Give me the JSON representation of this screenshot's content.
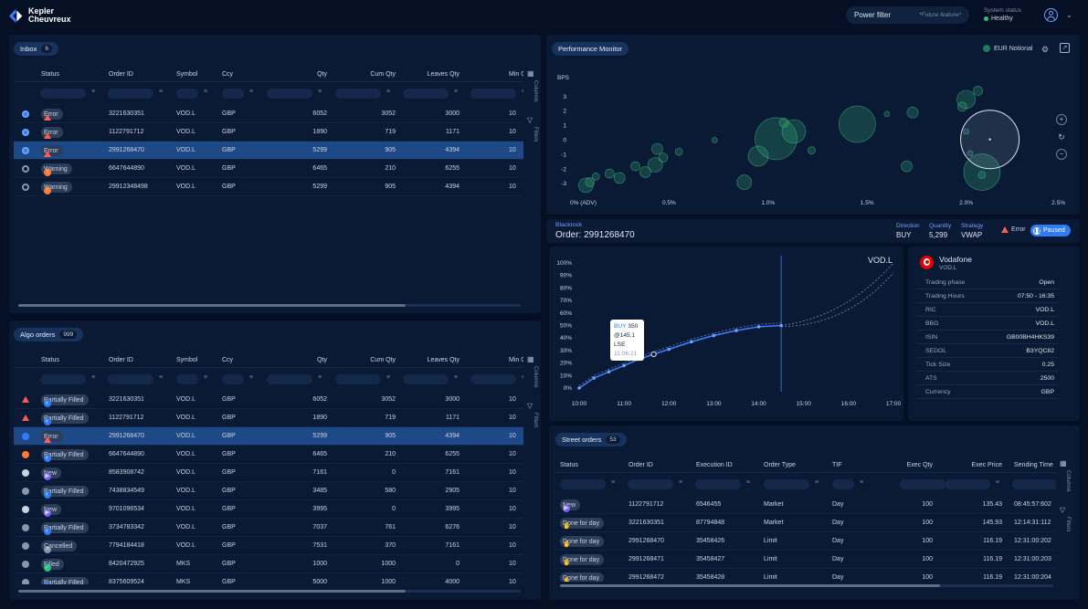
{
  "brand": {
    "line1": "Kepler",
    "line2": "Cheuvreux"
  },
  "top": {
    "power_filter": "Power filter",
    "future": "*Future feature*",
    "sys_title": "System status",
    "sys_value": "Healthy"
  },
  "inbox": {
    "title": "Inbox",
    "count": "6",
    "columns": [
      "Status",
      "Order ID",
      "Symbol",
      "Ccy",
      "Qty",
      "Cum Qty",
      "Leaves Qty",
      "Min Q"
    ],
    "rows": [
      {
        "status": "Error",
        "id": "3221630351",
        "sym": "VOD.L",
        "ccy": "GBP",
        "qty": "6052",
        "cum": "3052",
        "leaves": "3000",
        "min": "10"
      },
      {
        "status": "Error",
        "id": "1122791712",
        "sym": "VOD.L",
        "ccy": "GBP",
        "qty": "1890",
        "cum": "719",
        "leaves": "1171",
        "min": "10"
      },
      {
        "status": "Error",
        "id": "2991268470",
        "sym": "VOD.L",
        "ccy": "GBP",
        "qty": "5299",
        "cum": "905",
        "leaves": "4394",
        "min": "10"
      },
      {
        "status": "Warning",
        "id": "6647644890",
        "sym": "VOD.L",
        "ccy": "GBP",
        "qty": "6465",
        "cum": "210",
        "leaves": "6255",
        "min": "10"
      },
      {
        "status": "Warning",
        "id": "29912348498",
        "sym": "VOD.L",
        "ccy": "GBP",
        "qty": "5299",
        "cum": "905",
        "leaves": "4394",
        "min": "10"
      }
    ]
  },
  "algo": {
    "title": "Algo orders",
    "count": "999",
    "columns": [
      "Status",
      "Order ID",
      "Symbol",
      "Ccy",
      "Qty",
      "Cum Qty",
      "Leaves Qty",
      "Min Q"
    ],
    "rows": [
      {
        "status": "Partially Filled",
        "id": "3221630351",
        "sym": "VOD.L",
        "ccy": "GBP",
        "qty": "6052",
        "cum": "3052",
        "leaves": "3000",
        "min": "10"
      },
      {
        "status": "Partially Filled",
        "id": "1122791712",
        "sym": "VOD.L",
        "ccy": "GBP",
        "qty": "1890",
        "cum": "719",
        "leaves": "1171",
        "min": "10"
      },
      {
        "status": "Error",
        "id": "2991268470",
        "sym": "VOD.L",
        "ccy": "GBP",
        "qty": "5299",
        "cum": "905",
        "leaves": "4394",
        "min": "10"
      },
      {
        "status": "Partially Filled",
        "id": "6647644890",
        "sym": "VOD.L",
        "ccy": "GBP",
        "qty": "6465",
        "cum": "210",
        "leaves": "6255",
        "min": "10"
      },
      {
        "status": "New",
        "id": "8583908742",
        "sym": "VOD.L",
        "ccy": "GBP",
        "qty": "7161",
        "cum": "0",
        "leaves": "7161",
        "min": "10"
      },
      {
        "status": "Partially Filled",
        "id": "7438834549",
        "sym": "VOD.L",
        "ccy": "GBP",
        "qty": "3485",
        "cum": "580",
        "leaves": "2905",
        "min": "10"
      },
      {
        "status": "New",
        "id": "9701096534",
        "sym": "VOD.L",
        "ccy": "GBP",
        "qty": "3995",
        "cum": "0",
        "leaves": "3995",
        "min": "10"
      },
      {
        "status": "Partially Filled",
        "id": "3734783342",
        "sym": "VOD.L",
        "ccy": "GBP",
        "qty": "7037",
        "cum": "761",
        "leaves": "6276",
        "min": "10"
      },
      {
        "status": "Cancelled",
        "id": "7794184418",
        "sym": "VOD.L",
        "ccy": "GBP",
        "qty": "7531",
        "cum": "370",
        "leaves": "7161",
        "min": "10"
      },
      {
        "status": "Filled",
        "id": "8420472925",
        "sym": "MKS",
        "ccy": "GBP",
        "qty": "1000",
        "cum": "1000",
        "leaves": "0",
        "min": "10"
      },
      {
        "status": "Partially Filled",
        "id": "8375609524",
        "sym": "MKS",
        "ccy": "GBP",
        "qty": "5000",
        "cum": "1000",
        "leaves": "4000",
        "min": "10"
      }
    ]
  },
  "side_labels": {
    "columns": "Columns",
    "filters": "Filters"
  },
  "perf": {
    "title": "Performance Monitor",
    "notional": "EUR Notional",
    "chart_data": {
      "type": "scatter",
      "ylabel": "BPS",
      "x_ticks": [
        "0% (ADV)",
        "0.5%",
        "1.0%",
        "1.5%",
        "2.0%",
        "2.5%"
      ],
      "y_ticks": [
        "3",
        "2",
        "1",
        "0",
        "-1",
        "-2",
        "-3"
      ],
      "xlim": [
        0,
        2.5
      ],
      "ylim": [
        -3.3,
        3.3
      ],
      "points": [
        {
          "x": 0.08,
          "y": -3.1,
          "s": 8
        },
        {
          "x": 0.1,
          "y": -2.9,
          "s": 5
        },
        {
          "x": 0.13,
          "y": -2.5,
          "s": 4
        },
        {
          "x": 0.2,
          "y": -2.3,
          "s": 5
        },
        {
          "x": 0.25,
          "y": -2.6,
          "s": 6
        },
        {
          "x": 0.33,
          "y": -1.8,
          "s": 5
        },
        {
          "x": 0.38,
          "y": -2.2,
          "s": 6
        },
        {
          "x": 0.43,
          "y": -1.7,
          "s": 8
        },
        {
          "x": 0.44,
          "y": -0.6,
          "s": 6
        },
        {
          "x": 0.47,
          "y": -1.2,
          "s": 5
        },
        {
          "x": 0.55,
          "y": -0.8,
          "s": 4
        },
        {
          "x": 0.73,
          "y": 0.0,
          "s": 3
        },
        {
          "x": 0.88,
          "y": -2.9,
          "s": 8
        },
        {
          "x": 0.95,
          "y": -1.1,
          "s": 11
        },
        {
          "x": 1.04,
          "y": 0.1,
          "s": 23
        },
        {
          "x": 1.08,
          "y": 1.2,
          "s": 5
        },
        {
          "x": 1.13,
          "y": 0.6,
          "s": 13
        },
        {
          "x": 1.22,
          "y": -0.7,
          "s": 4
        },
        {
          "x": 1.45,
          "y": 1.1,
          "s": 20
        },
        {
          "x": 1.6,
          "y": 1.8,
          "s": 3
        },
        {
          "x": 1.73,
          "y": 1.9,
          "s": 6
        },
        {
          "x": 1.7,
          "y": -1.8,
          "s": 6
        },
        {
          "x": 1.98,
          "y": 2.3,
          "s": 5
        },
        {
          "x": 2.0,
          "y": 0.6,
          "s": 3
        },
        {
          "x": 2.0,
          "y": 2.8,
          "s": 10
        },
        {
          "x": 2.02,
          "y": -0.9,
          "s": 3
        },
        {
          "x": 2.06,
          "y": 3.4,
          "s": 5
        },
        {
          "x": 2.08,
          "y": -2.2,
          "s": 20
        },
        {
          "x": 2.08,
          "y": -2.4,
          "s": 4
        },
        {
          "x": 2.12,
          "y": 0.05,
          "s": 32,
          "hl": true
        }
      ]
    }
  },
  "order": {
    "client": "Blackrock",
    "title": "Order: 2991268470",
    "direction_label": "Direction",
    "direction": "BUY",
    "quantity_label": "Quantity",
    "quantity": "5,299",
    "strategy_label": "Strategy",
    "strategy": "VWAP",
    "error": "Error",
    "paused": "Paused"
  },
  "exec_chart": {
    "chart_data": {
      "type": "line",
      "symbol": "VOD.L",
      "y_ticks": [
        "100%",
        "90%",
        "80%",
        "70%",
        "60%",
        "50%",
        "40%",
        "30%",
        "20%",
        "10%",
        "0%"
      ],
      "x_ticks": [
        "10:00",
        "11:00",
        "12:00",
        "13:00",
        "14:00",
        "15:00",
        "16:00",
        "17:00"
      ],
      "x": [
        10.0,
        10.33,
        10.66,
        11.0,
        11.33,
        11.66,
        12.0,
        12.5,
        13.0,
        13.5,
        14.0,
        14.5
      ],
      "y": [
        0,
        8,
        13,
        18,
        23,
        27,
        31,
        37,
        42,
        46,
        49,
        50
      ],
      "now": 14.5,
      "tooltip": {
        "side": "BUY",
        "qty": "350",
        "price": "@145.1",
        "venue": "LSE",
        "time": "11:06:21"
      }
    }
  },
  "instrument": {
    "name": "Vodafone",
    "ticker": "VOD.L",
    "rows": [
      {
        "k": "Trading phase",
        "v": "Open"
      },
      {
        "k": "Trading Hours",
        "v": "07:50 - 16:35"
      },
      {
        "k": "RIC",
        "v": "VOD.L"
      },
      {
        "k": "BBG",
        "v": "VOD.L"
      },
      {
        "k": "ISIN",
        "v": "GB00BH4HKS39"
      },
      {
        "k": "SEDOL",
        "v": "B3YQC82"
      },
      {
        "k": "Tick Size",
        "v": "0.25"
      },
      {
        "k": "ATS",
        "v": "2500"
      },
      {
        "k": "Currency",
        "v": "GBP"
      }
    ]
  },
  "street": {
    "title": "Street orders",
    "count": "53",
    "columns": [
      "Status",
      "Order ID",
      "Execution ID",
      "Order Type",
      "TIF",
      "Exec Qty",
      "Exec Price",
      "Sending Time"
    ],
    "rows": [
      {
        "status": "New",
        "id": "1122791712",
        "exec": "6546455",
        "type": "Market",
        "tif": "Day",
        "qty": "100",
        "price": "135.43",
        "time": "08:45:57:602"
      },
      {
        "status": "Done for day",
        "id": "3221630351",
        "exec": "87794848",
        "type": "Market",
        "tif": "Day",
        "qty": "100",
        "price": "145.93",
        "time": "12:14:31:112"
      },
      {
        "status": "Done for day",
        "id": "2991268470",
        "exec": "35458426",
        "type": "Limit",
        "tif": "Day",
        "qty": "100",
        "price": "116.19",
        "time": "12:31:00:202"
      },
      {
        "status": "Done for day",
        "id": "2991268471",
        "exec": "35458427",
        "type": "Limit",
        "tif": "Day",
        "qty": "100",
        "price": "116.19",
        "time": "12:31:00:203"
      },
      {
        "status": "Done for day",
        "id": "2991268472",
        "exec": "35458428",
        "type": "Limit",
        "tif": "Day",
        "qty": "100",
        "price": "116.19",
        "time": "12:31:00:204"
      }
    ]
  }
}
